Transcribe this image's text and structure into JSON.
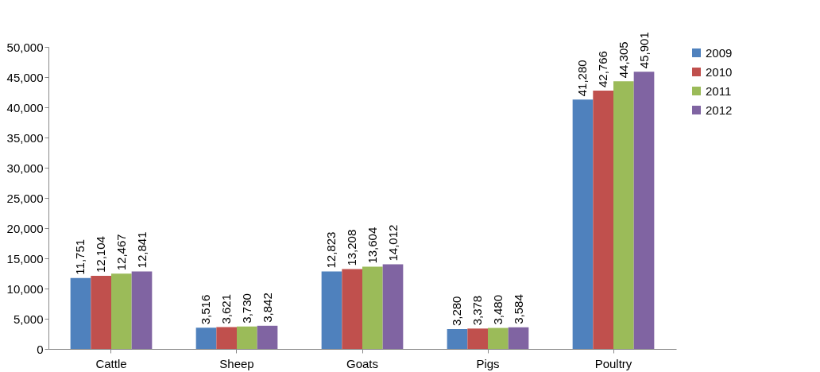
{
  "chart_data": {
    "type": "bar",
    "categories": [
      "Cattle",
      "Sheep",
      "Goats",
      "Pigs",
      "Poultry"
    ],
    "series": [
      {
        "name": "2009",
        "color": "#4f81bd",
        "values": [
          11751,
          3516,
          12823,
          3280,
          41280
        ],
        "value_labels": [
          "11,751",
          "3,516",
          "12,823",
          "3,280",
          "41,280"
        ]
      },
      {
        "name": "2010",
        "color": "#c0504d",
        "values": [
          12104,
          3621,
          13208,
          3378,
          42766
        ],
        "value_labels": [
          "12,104",
          "3,621",
          "13,208",
          "3,378",
          "42,766"
        ]
      },
      {
        "name": "2011",
        "color": "#9bbb59",
        "values": [
          12467,
          3730,
          13604,
          3480,
          44305
        ],
        "value_labels": [
          "12,467",
          "3,730",
          "13,604",
          "3,480",
          "44,305"
        ]
      },
      {
        "name": "2012",
        "color": "#8064a2",
        "values": [
          12841,
          3842,
          14012,
          3584,
          45901
        ],
        "value_labels": [
          "12,841",
          "3,842",
          "14,012",
          "3,584",
          "45,901"
        ]
      }
    ],
    "ylim": [
      0,
      50000
    ],
    "yticks": [
      {
        "value": 0,
        "label": "0"
      },
      {
        "value": 5000,
        "label": "5,000"
      },
      {
        "value": 10000,
        "label": "10,000"
      },
      {
        "value": 15000,
        "label": "15,000"
      },
      {
        "value": 20000,
        "label": "20,000"
      },
      {
        "value": 25000,
        "label": "25,000"
      },
      {
        "value": 30000,
        "label": "30,000"
      },
      {
        "value": 35000,
        "label": "35,000"
      },
      {
        "value": 40000,
        "label": "40,000"
      },
      {
        "value": 45000,
        "label": "45,000"
      },
      {
        "value": 50000,
        "label": "50,000"
      }
    ],
    "legend": "right",
    "grid": false
  }
}
